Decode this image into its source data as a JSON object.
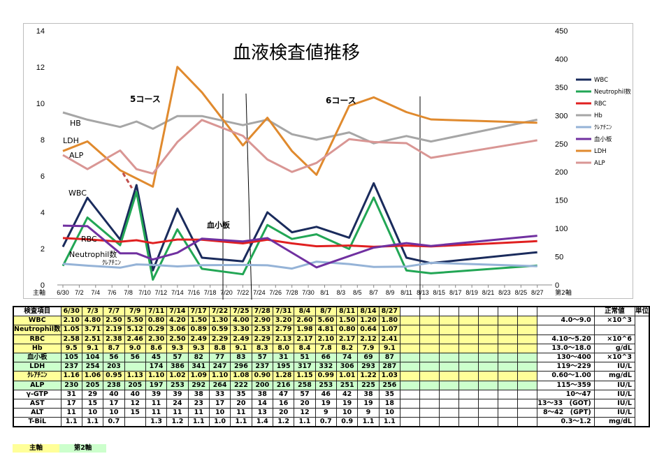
{
  "chart_data": {
    "type": "line",
    "title": "血液検査値推移",
    "x": [
      "6/30",
      "7/2",
      "7/4",
      "7/6",
      "7/8",
      "7/10",
      "7/12",
      "7/14",
      "7/16",
      "7/18",
      "7/20",
      "7/22",
      "7/24",
      "7/26",
      "7/28",
      "7/30",
      "8/1",
      "8/3",
      "8/5",
      "8/7",
      "8/9",
      "8/11",
      "8/13",
      "8/15",
      "8/17",
      "8/19",
      "8/21",
      "8/23",
      "8/25",
      "8/27"
    ],
    "x_tick_labels": [
      "6/30",
      "7/2",
      "7/4",
      "7/6",
      "7/8",
      "7/10",
      "7/12",
      "7/14",
      "7/16",
      "7/18",
      "7/20",
      "7/22",
      "7/24",
      "7/26",
      "7/28",
      "7/30",
      "8/1",
      "8/3",
      "8/5",
      "8/7",
      "8/9",
      "8/11",
      "8/13",
      "8/15",
      "8/17",
      "8/19",
      "8/21",
      "8/23",
      "8/25",
      "8/27"
    ],
    "primary_axis_label": "主軸",
    "secondary_axis_label": "第2軸",
    "ylim": [
      0,
      14
    ],
    "y_ticks": [
      0,
      2,
      4,
      6,
      8,
      10,
      12,
      14
    ],
    "y2lim": [
      0,
      450
    ],
    "y2_ticks": [
      0,
      50,
      100,
      150,
      200,
      250,
      300,
      350,
      400,
      450
    ],
    "legend_position": "right",
    "grid": false,
    "series": [
      {
        "name": "WBC",
        "axis": "primary",
        "color": "#1a2b5c",
        "x": [
          "6/30",
          "7/3",
          "7/7",
          "7/9",
          "7/11",
          "7/14",
          "7/17",
          "7/22",
          "7/25",
          "7/28",
          "7/31",
          "8/4",
          "8/7",
          "8/11",
          "8/14",
          "8/27"
        ],
        "values": [
          2.1,
          4.8,
          2.5,
          5.5,
          0.8,
          4.2,
          1.5,
          1.3,
          4.0,
          2.9,
          3.2,
          2.6,
          5.6,
          1.5,
          1.2,
          1.8
        ]
      },
      {
        "name": "Neutrophil数",
        "axis": "primary",
        "color": "#22a655",
        "x": [
          "6/30",
          "7/3",
          "7/7",
          "7/9",
          "7/11",
          "7/14",
          "7/17",
          "7/22",
          "7/25",
          "7/28",
          "7/31",
          "8/4",
          "8/7",
          "8/11",
          "8/14",
          "8/27"
        ],
        "values": [
          1.05,
          3.71,
          2.19,
          5.12,
          0.29,
          3.06,
          0.89,
          0.59,
          3.3,
          2.53,
          2.79,
          1.98,
          4.81,
          0.8,
          0.64,
          1.07
        ]
      },
      {
        "name": "RBC",
        "axis": "primary",
        "color": "#e02020",
        "x": [
          "6/30",
          "7/3",
          "7/7",
          "7/9",
          "7/11",
          "7/14",
          "7/17",
          "7/22",
          "7/25",
          "7/28",
          "7/31",
          "8/4",
          "8/7",
          "8/11",
          "8/14",
          "8/27"
        ],
        "values": [
          2.58,
          2.51,
          2.38,
          2.46,
          2.3,
          2.5,
          2.49,
          2.29,
          2.49,
          2.29,
          2.13,
          2.17,
          2.1,
          2.17,
          2.12,
          2.41
        ]
      },
      {
        "name": "Hb",
        "axis": "primary",
        "color": "#a6a6a6",
        "x": [
          "6/30",
          "7/3",
          "7/7",
          "7/9",
          "7/11",
          "7/14",
          "7/17",
          "7/22",
          "7/25",
          "7/28",
          "7/31",
          "8/4",
          "8/7",
          "8/11",
          "8/14",
          "8/27"
        ],
        "values": [
          9.5,
          9.1,
          8.7,
          9.0,
          8.6,
          9.3,
          9.3,
          8.8,
          9.1,
          8.3,
          8.0,
          8.4,
          7.8,
          8.2,
          7.9,
          9.1
        ]
      },
      {
        "name": "ｸﾚｱﾁﾆﾝ",
        "axis": "primary",
        "color": "#95b3d7",
        "x": [
          "6/30",
          "7/3",
          "7/7",
          "7/9",
          "7/11",
          "7/14",
          "7/17",
          "7/22",
          "7/25",
          "7/28",
          "7/31",
          "8/4",
          "8/7",
          "8/11",
          "8/14",
          "8/27"
        ],
        "values": [
          1.16,
          1.06,
          0.95,
          1.13,
          1.1,
          1.02,
          1.09,
          1.1,
          1.08,
          0.9,
          1.28,
          1.15,
          0.99,
          1.01,
          1.22,
          1.03
        ]
      },
      {
        "name": "血小板",
        "axis": "secondary",
        "color": "#7030a0",
        "x": [
          "6/30",
          "7/3",
          "7/7",
          "7/9",
          "7/11",
          "7/14",
          "7/17",
          "7/22",
          "7/25",
          "7/28",
          "7/31",
          "8/4",
          "8/7",
          "8/11",
          "8/14",
          "8/27"
        ],
        "values": [
          105,
          104,
          56,
          56,
          45,
          57,
          82,
          77,
          83,
          57,
          31,
          51,
          66,
          74,
          69,
          87
        ]
      },
      {
        "name": "LDH",
        "axis": "secondary",
        "color": "#e08a2e",
        "x": [
          "6/30",
          "7/3",
          "7/7",
          "7/11",
          "7/14",
          "7/17",
          "7/22",
          "7/25",
          "7/28",
          "7/31",
          "8/4",
          "8/7",
          "8/11",
          "8/14",
          "8/27"
        ],
        "values": [
          237,
          254,
          203,
          174,
          386,
          341,
          247,
          296,
          237,
          195,
          317,
          332,
          306,
          293,
          287
        ]
      },
      {
        "name": "ALP",
        "axis": "secondary",
        "color": "#d99694",
        "x": [
          "6/30",
          "7/3",
          "7/7",
          "7/9",
          "7/11",
          "7/14",
          "7/17",
          "7/22",
          "7/25",
          "7/28",
          "7/31",
          "8/4",
          "8/7",
          "8/11",
          "8/14",
          "8/27"
        ],
        "values": [
          230,
          205,
          238,
          205,
          197,
          253,
          292,
          264,
          222,
          200,
          216,
          258,
          253,
          251,
          225,
          256
        ]
      }
    ],
    "annotations": [
      "5コース",
      "6コース",
      "血小板",
      "HB",
      "LDH",
      "ALP",
      "WBC",
      "RBC",
      "Neutrophil数",
      "ｸﾚｱﾁﾆﾝ"
    ]
  },
  "table": {
    "headers": [
      "検査項目",
      "6/30",
      "7/3",
      "7/7",
      "7/9",
      "7/11",
      "7/14",
      "7/17",
      "7/22",
      "7/25",
      "7/28",
      "7/31",
      "8/4",
      "8/7",
      "8/11",
      "8/14",
      "8/27",
      "",
      "",
      "",
      "",
      "",
      "",
      "",
      "",
      "正常値",
      "単位"
    ],
    "rows": [
      {
        "name": "WBC",
        "axis": "main",
        "values": [
          "2.10",
          "4.80",
          "2.50",
          "5.50",
          "0.80",
          "4.20",
          "1.50",
          "1.30",
          "4.00",
          "2.90",
          "3.20",
          "2.60",
          "5.60",
          "1.50",
          "1.20",
          "1.80"
        ],
        "normal": "4.0～9.0",
        "unit": "×10^3"
      },
      {
        "name": "Neutrophil数",
        "axis": "main",
        "values": [
          "1.05",
          "3.71",
          "2.19",
          "5.12",
          "0.29",
          "3.06",
          "0.89",
          "0.59",
          "3.30",
          "2.53",
          "2.79",
          "1.98",
          "4.81",
          "0.80",
          "0.64",
          "1.07"
        ],
        "normal": "",
        "unit": ""
      },
      {
        "name": "RBC",
        "axis": "main",
        "values": [
          "2.58",
          "2.51",
          "2.38",
          "2.46",
          "2.30",
          "2.50",
          "2.49",
          "2.29",
          "2.49",
          "2.29",
          "2.13",
          "2.17",
          "2.10",
          "2.17",
          "2.12",
          "2.41"
        ],
        "normal": "4.10～5.20",
        "unit": "×10^6"
      },
      {
        "name": "Hb",
        "axis": "main",
        "values": [
          "9.5",
          "9.1",
          "8.7",
          "9.0",
          "8.6",
          "9.3",
          "9.3",
          "8.8",
          "9.1",
          "8.3",
          "8.0",
          "8.4",
          "7.8",
          "8.2",
          "7.9",
          "9.1"
        ],
        "normal": "13.0～18.0",
        "unit": "g/dL"
      },
      {
        "name": "血小板",
        "axis": "second",
        "values": [
          "105",
          "104",
          "56",
          "56",
          "45",
          "57",
          "82",
          "77",
          "83",
          "57",
          "31",
          "51",
          "66",
          "74",
          "69",
          "87"
        ],
        "normal": "130～400",
        "unit": "×10^3"
      },
      {
        "name": "LDH",
        "axis": "second",
        "values": [
          "237",
          "254",
          "203",
          "",
          "174",
          "386",
          "341",
          "247",
          "296",
          "237",
          "195",
          "317",
          "332",
          "306",
          "293",
          "287"
        ],
        "normal": "119～229",
        "unit": "IU/L"
      },
      {
        "name": "ｸﾚｱﾁﾆﾝ",
        "axis": "main",
        "values": [
          "1.16",
          "1.06",
          "0.95",
          "1.13",
          "1.10",
          "1.02",
          "1.09",
          "1.10",
          "1.08",
          "0.90",
          "1.28",
          "1.15",
          "0.99",
          "1.01",
          "1.22",
          "1.03"
        ],
        "normal": "0.60～1.00",
        "unit": "mg/dL"
      },
      {
        "name": "ALP",
        "axis": "second",
        "values": [
          "230",
          "205",
          "238",
          "205",
          "197",
          "253",
          "292",
          "264",
          "222",
          "200",
          "216",
          "258",
          "253",
          "251",
          "225",
          "256"
        ],
        "normal": "115～359",
        "unit": "IU/L"
      },
      {
        "name": "γ-GTP",
        "axis": "none",
        "values": [
          "31",
          "29",
          "40",
          "40",
          "39",
          "39",
          "38",
          "33",
          "35",
          "38",
          "47",
          "57",
          "46",
          "42",
          "38",
          "35"
        ],
        "normal": "10～47",
        "unit": "IU/L"
      },
      {
        "name": "AST",
        "axis": "none",
        "values": [
          "17",
          "15",
          "17",
          "12",
          "11",
          "24",
          "23",
          "17",
          "20",
          "14",
          "16",
          "20",
          "19",
          "19",
          "19",
          "18"
        ],
        "normal": "13～33　(GOT)",
        "unit": "IU/L"
      },
      {
        "name": "ALT",
        "axis": "none",
        "values": [
          "11",
          "10",
          "10",
          "15",
          "11",
          "11",
          "11",
          "10",
          "11",
          "13",
          "20",
          "12",
          "9",
          "10",
          "9",
          "10"
        ],
        "normal": "8～42　(GPT)",
        "unit": "IU/L"
      },
      {
        "name": "T-BiL",
        "axis": "none",
        "values": [
          "1.1",
          "1.1",
          "0.7",
          "",
          "1.3",
          "1.2",
          "1.1",
          "1.0",
          "1.1",
          "1.4",
          "1.2",
          "1.1",
          "0.7",
          "0.9",
          "1.1",
          "1.1"
        ],
        "normal": "0.3～1.2",
        "unit": "mg/dL"
      }
    ]
  },
  "footer": {
    "main_label": "主軸",
    "secondary_label": "第2軸"
  }
}
